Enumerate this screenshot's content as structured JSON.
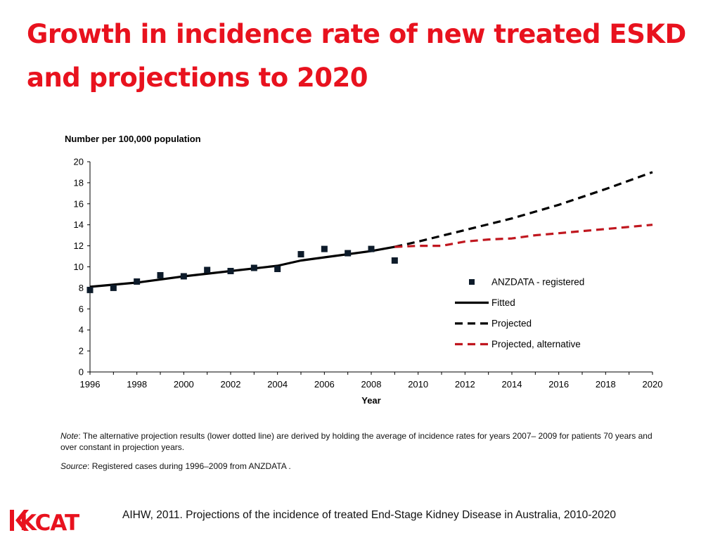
{
  "slide": {
    "title": "Growth in incidence rate of new treated ESKD and projections to 2020",
    "note_prefix": "Note",
    "note_text": ": The alternative projection results (lower dotted line) are derived by holding the average of incidence rates for years 2007– 2009 for patients 70 years and over constant in projection years.",
    "source_prefix": "Source",
    "source_text": ": Registered cases during 1996–2009 from ANZDATA .",
    "logo_text": "KCAT",
    "citation": "AIHW, 2011. Projections of the incidence of treated End-Stage Kidney Disease in Australia, 2010-2020",
    "title_color": "#e8121e",
    "logo_color": "#e8121e"
  },
  "chart_data": {
    "type": "line",
    "title": "",
    "ylabel": "Number per 100,000 population",
    "xlabel": "Year",
    "xlim": [
      1996,
      2020
    ],
    "ylim": [
      0,
      20
    ],
    "x_ticks": [
      1996,
      1998,
      2000,
      2002,
      2004,
      2006,
      2008,
      2010,
      2012,
      2014,
      2016,
      2018,
      2020
    ],
    "y_ticks": [
      0,
      2,
      4,
      6,
      8,
      10,
      12,
      14,
      16,
      18,
      20
    ],
    "grid": false,
    "legend_position": "right",
    "series": [
      {
        "name": "ANZDATA - registered",
        "style": "markers",
        "color": "#0d1b2a",
        "x": [
          1996,
          1997,
          1998,
          1999,
          2000,
          2001,
          2002,
          2003,
          2004,
          2005,
          2006,
          2007,
          2008,
          2009
        ],
        "y": [
          7.8,
          8.0,
          8.6,
          9.2,
          9.1,
          9.7,
          9.6,
          9.9,
          9.8,
          11.2,
          11.7,
          11.3,
          11.7,
          10.6
        ]
      },
      {
        "name": "Fitted",
        "style": "solid",
        "color": "#000000",
        "x": [
          1996,
          1998,
          2000,
          2002,
          2004,
          2005,
          2006,
          2008,
          2009
        ],
        "y": [
          8.1,
          8.5,
          9.1,
          9.6,
          10.1,
          10.6,
          10.9,
          11.5,
          11.9
        ]
      },
      {
        "name": "Projected",
        "style": "dashed",
        "color": "#000000",
        "x": [
          2009,
          2010,
          2012,
          2014,
          2016,
          2018,
          2020
        ],
        "y": [
          11.9,
          12.4,
          13.5,
          14.6,
          15.9,
          17.4,
          19.0
        ]
      },
      {
        "name": "Projected, alternative",
        "style": "dashed",
        "color": "#c0171f",
        "x": [
          2009,
          2010,
          2011,
          2012,
          2013,
          2014,
          2015,
          2016,
          2018,
          2020
        ],
        "y": [
          11.9,
          12.0,
          12.0,
          12.4,
          12.6,
          12.7,
          13.0,
          13.2,
          13.6,
          14.0
        ]
      }
    ]
  }
}
